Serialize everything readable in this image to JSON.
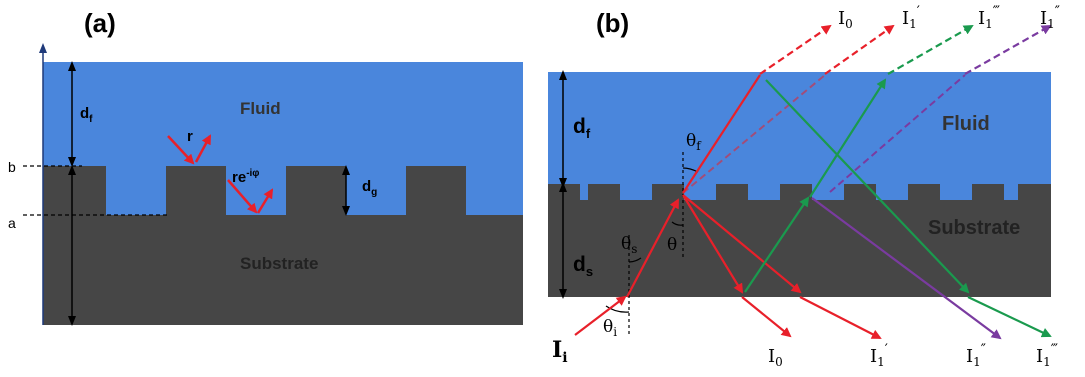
{
  "panel_a": {
    "label": "(a)",
    "fluid_label": "Fluid",
    "substrate_label": "Substrate",
    "df_label": "d",
    "df_sub": "f",
    "dg_label": "d",
    "dg_sub": "g",
    "r_label": "r",
    "refl_label": "re",
    "refl_sup": "-iφ",
    "b_label": "b",
    "a_label": "a"
  },
  "panel_b": {
    "label": "(b)",
    "fluid_label": "Fluid",
    "substrate_label": "Substrate",
    "df_label": "d",
    "df_sub": "f",
    "ds_label": "d",
    "ds_sub": "s",
    "theta_f": "θ",
    "theta_f_sub": "f",
    "theta_plain": "θ",
    "theta_s": "θ",
    "theta_s_sub": "s",
    "theta_i": "θ",
    "theta_i_sub": "i",
    "incident_label": "I",
    "incident_sub": "i",
    "top_I0": "I",
    "top_I0_sub": "0",
    "top_I1p": "I",
    "top_I1p_sub": "1",
    "top_I1p_prime": "′",
    "top_I1ppp": "I",
    "top_I1ppp_sub": "1",
    "top_I1ppp_prime": "‴",
    "top_I1pp": "I",
    "top_I1pp_sub": "1",
    "top_I1pp_prime": "″",
    "bot_I0": "I",
    "bot_I0_sub": "0",
    "bot_I1p": "I",
    "bot_I1p_sub": "1",
    "bot_I1p_prime": "′",
    "bot_I1pp": "I",
    "bot_I1pp_sub": "1",
    "bot_I1pp_prime": "″",
    "bot_I1ppp": "I",
    "bot_I1ppp_sub": "1",
    "bot_I1ppp_prime": "‴"
  },
  "colors": {
    "fluid": "#4a86dc",
    "substrate": "#464646",
    "red": "#e8202a",
    "green": "#1a9a4e",
    "purple": "#7a3ba0",
    "axis": "#1f3a7a"
  }
}
